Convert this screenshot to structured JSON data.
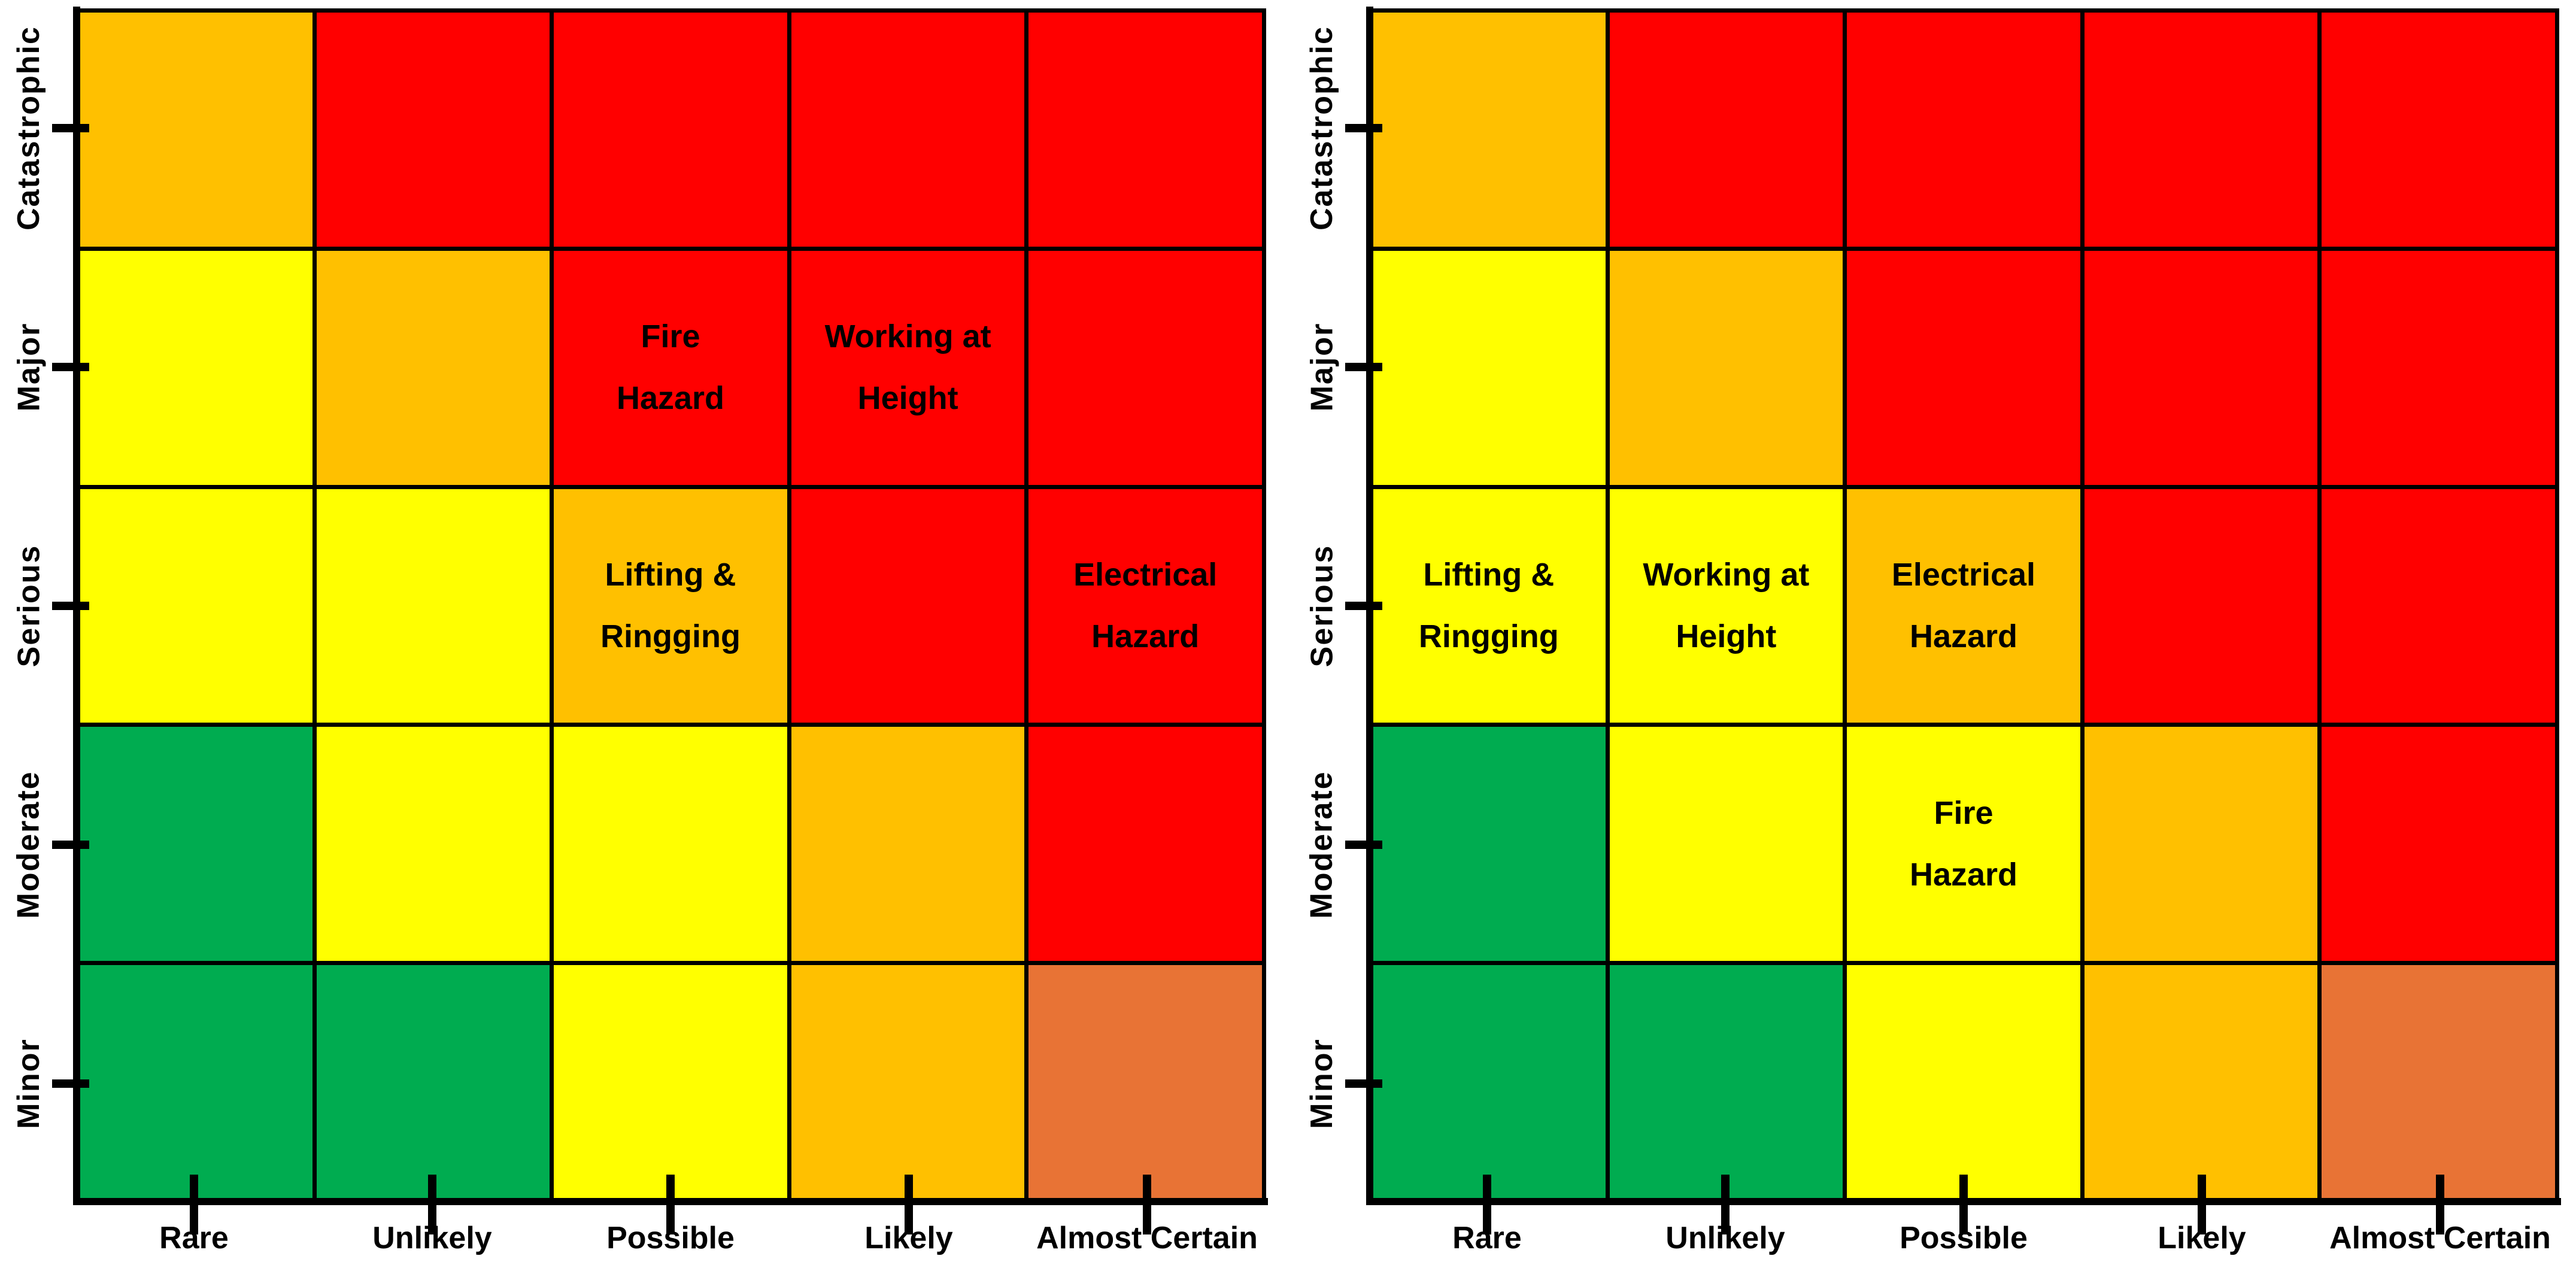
{
  "page": {
    "background": "#FFFFFF"
  },
  "colors": {
    "green": "#00AC50",
    "yellow": "#FFFF00",
    "orange": "#FFC000",
    "red": "#FF0000",
    "terracotta": "#E87335",
    "grid_line": "#000000",
    "label_text": "#000000"
  },
  "chart_data": [
    {
      "type": "heatmap",
      "name": "risk-matrix-left",
      "title": "",
      "xlabel": "",
      "ylabel": "",
      "legend": "none",
      "grid": "on",
      "x_categories": [
        "Rare",
        "Unlikely",
        "Possible",
        "Likely",
        "Almost Certain"
      ],
      "y_categories": [
        "Catastrophic",
        "Major",
        "Serious",
        "Moderate",
        "Minor"
      ],
      "cell_colors": [
        [
          "orange",
          "red",
          "red",
          "red",
          "red"
        ],
        [
          "yellow",
          "orange",
          "red",
          "red",
          "red"
        ],
        [
          "yellow",
          "yellow",
          "orange",
          "red",
          "red"
        ],
        [
          "green",
          "yellow",
          "yellow",
          "orange",
          "red"
        ],
        [
          "green",
          "green",
          "yellow",
          "orange",
          "terracotta"
        ]
      ],
      "annotations": [
        {
          "row": 1,
          "col": 2,
          "text": "Fire Hazard",
          "lines": [
            "Fire",
            "Hazard"
          ]
        },
        {
          "row": 1,
          "col": 3,
          "text": "Working at Height",
          "lines": [
            "Working at",
            "Height"
          ]
        },
        {
          "row": 2,
          "col": 2,
          "text": "Lifting & Ringging",
          "lines": [
            "Lifting &",
            "Ringging"
          ]
        },
        {
          "row": 2,
          "col": 4,
          "text": "Electrical Hazard",
          "lines": [
            "Electrical",
            "Hazard"
          ]
        }
      ]
    },
    {
      "type": "heatmap",
      "name": "risk-matrix-right",
      "title": "",
      "xlabel": "",
      "ylabel": "",
      "legend": "none",
      "grid": "on",
      "x_categories": [
        "Rare",
        "Unlikely",
        "Possible",
        "Likely",
        "Almost Certain"
      ],
      "y_categories": [
        "Catastrophic",
        "Major",
        "Serious",
        "Moderate",
        "Minor"
      ],
      "cell_colors": [
        [
          "orange",
          "red",
          "red",
          "red",
          "red"
        ],
        [
          "yellow",
          "orange",
          "red",
          "red",
          "red"
        ],
        [
          "yellow",
          "yellow",
          "orange",
          "red",
          "red"
        ],
        [
          "green",
          "yellow",
          "yellow",
          "orange",
          "red"
        ],
        [
          "green",
          "green",
          "yellow",
          "orange",
          "terracotta"
        ]
      ],
      "annotations": [
        {
          "row": 2,
          "col": 0,
          "text": "Lifting & Ringging",
          "lines": [
            "Lifting &",
            "Ringging"
          ]
        },
        {
          "row": 2,
          "col": 1,
          "text": "Working at Height",
          "lines": [
            "Working at",
            "Height"
          ]
        },
        {
          "row": 2,
          "col": 2,
          "text": "Electrical Hazard",
          "lines": [
            "Electrical",
            "Hazard"
          ]
        },
        {
          "row": 3,
          "col": 2,
          "text": "Fire Hazard",
          "lines": [
            "Fire",
            "Hazard"
          ]
        }
      ]
    }
  ]
}
